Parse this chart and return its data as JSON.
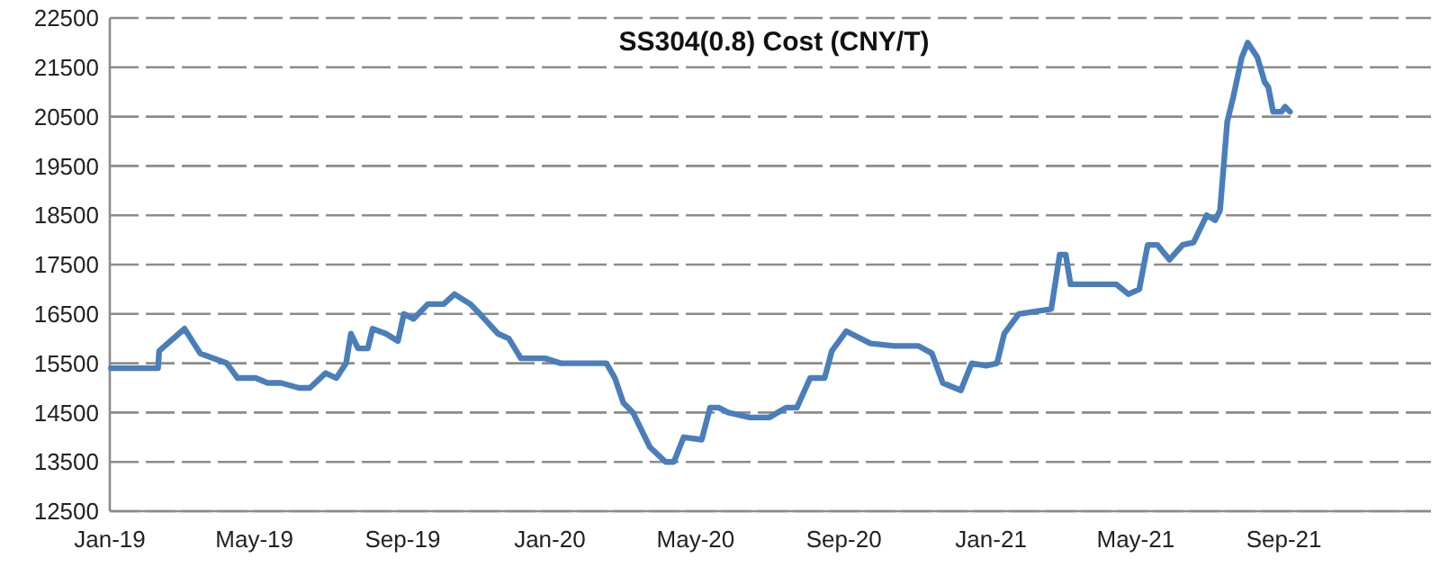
{
  "chart_data": {
    "type": "line",
    "title": "SS304(0.8) Cost (CNY/T)",
    "x": [
      "2019-01-02",
      "2019-02-10",
      "2019-02-11",
      "2019-03-04",
      "2019-03-17",
      "2019-04-08",
      "2019-04-17",
      "2019-05-02",
      "2019-05-12",
      "2019-05-23",
      "2019-06-07",
      "2019-06-16",
      "2019-06-29",
      "2019-07-08",
      "2019-07-16",
      "2019-07-20",
      "2019-07-26",
      "2019-08-03",
      "2019-08-07",
      "2019-08-18",
      "2019-08-28",
      "2019-09-02",
      "2019-09-10",
      "2019-09-22",
      "2019-10-05",
      "2019-10-14",
      "2019-10-27",
      "2019-11-04",
      "2019-11-19",
      "2019-11-28",
      "2019-12-08",
      "2019-12-28",
      "2020-01-10",
      "2020-02-17",
      "2020-02-24",
      "2020-03-02",
      "2020-03-10",
      "2020-03-24",
      "2020-04-06",
      "2020-04-13",
      "2020-04-21",
      "2020-05-06",
      "2020-05-13",
      "2020-05-20",
      "2020-05-28",
      "2020-06-15",
      "2020-07-01",
      "2020-07-15",
      "2020-07-24",
      "2020-08-04",
      "2020-08-16",
      "2020-08-22",
      "2020-09-03",
      "2020-09-23",
      "2020-10-13",
      "2020-11-02",
      "2020-11-13",
      "2020-11-22",
      "2020-12-07",
      "2020-12-16",
      "2020-12-28",
      "2021-01-06",
      "2021-01-12",
      "2021-01-24",
      "2021-02-20",
      "2021-02-27",
      "2021-03-04",
      "2021-03-08",
      "2021-04-15",
      "2021-04-25",
      "2021-05-04",
      "2021-05-11",
      "2021-05-19",
      "2021-05-29",
      "2021-06-09",
      "2021-06-18",
      "2021-06-29",
      "2021-07-06",
      "2021-07-10",
      "2021-07-16",
      "2021-07-21",
      "2021-07-28",
      "2021-08-02",
      "2021-08-10",
      "2021-08-16",
      "2021-08-19",
      "2021-08-23",
      "2021-08-30",
      "2021-09-02",
      "2021-09-06"
    ],
    "series": [
      {
        "color": "#4a7ebb",
        "values": [
          15400,
          15400,
          15750,
          16200,
          15700,
          15500,
          15200,
          15200,
          15100,
          15100,
          15000,
          15000,
          15300,
          15200,
          15500,
          16100,
          15800,
          15800,
          16200,
          16100,
          15950,
          16500,
          16400,
          16700,
          16700,
          16900,
          16700,
          16500,
          16100,
          16000,
          15600,
          15600,
          15500,
          15500,
          15200,
          14700,
          14500,
          13800,
          13500,
          13500,
          14000,
          13950,
          14600,
          14600,
          14500,
          14400,
          14400,
          14600,
          14600,
          15200,
          15200,
          15750,
          16150,
          15900,
          15850,
          15850,
          15700,
          15100,
          14950,
          15500,
          15450,
          15500,
          16100,
          16500,
          16600,
          17700,
          17700,
          17100,
          17100,
          16900,
          17000,
          17900,
          17900,
          17600,
          17900,
          17950,
          18500,
          18400,
          18600,
          20400,
          20900,
          21700,
          22000,
          21700,
          21200,
          21100,
          20600,
          20600,
          20700,
          20600
        ]
      }
    ],
    "xlim": [
      "2019-01-01",
      "2022-01-01"
    ],
    "xticks": [
      {
        "value": "2019-01-01",
        "label": "Jan-19"
      },
      {
        "value": "2019-05-01",
        "label": "May-19"
      },
      {
        "value": "2019-09-01",
        "label": "Sep-19"
      },
      {
        "value": "2020-01-01",
        "label": "Jan-20"
      },
      {
        "value": "2020-05-01",
        "label": "May-20"
      },
      {
        "value": "2020-09-01",
        "label": "Sep-20"
      },
      {
        "value": "2021-01-01",
        "label": "Jan-21"
      },
      {
        "value": "2021-05-01",
        "label": "May-21"
      },
      {
        "value": "2021-09-01",
        "label": "Sep-21"
      }
    ],
    "ylim": [
      12500,
      22500
    ],
    "yticks": [
      12500,
      13500,
      14500,
      15500,
      16500,
      17500,
      18500,
      19500,
      20500,
      21500,
      22500
    ],
    "grid": "y",
    "marker": "none",
    "line_style": "solid"
  }
}
